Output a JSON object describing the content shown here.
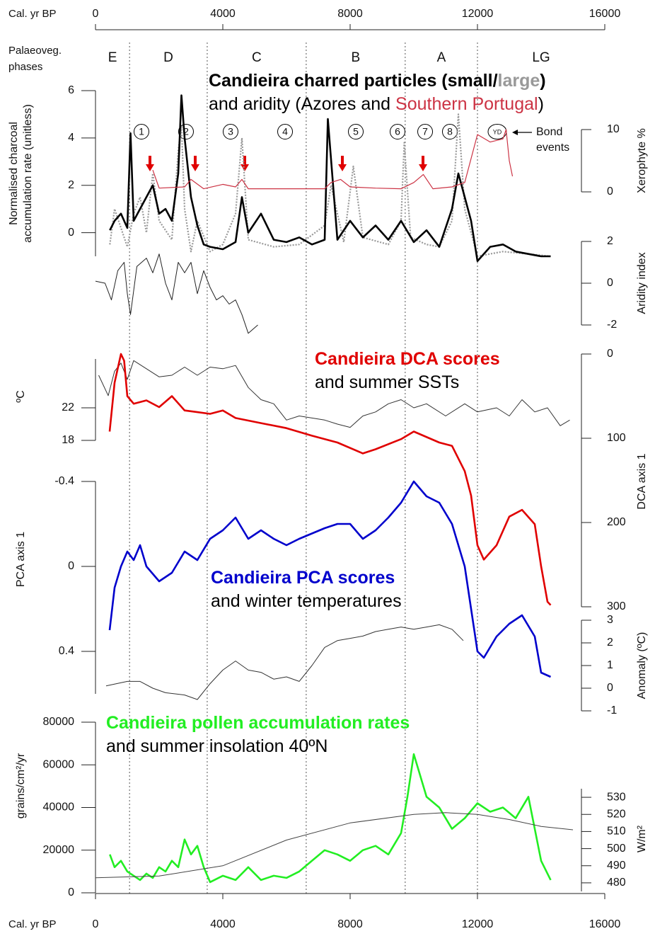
{
  "chart_data": [
    {
      "type": "line",
      "title": [
        {
          "text": "Candieira charred particles (",
          "color": "#000000"
        },
        {
          "text": "small",
          "color": "#000000"
        },
        {
          "text": "/",
          "color": "#000000"
        },
        {
          "text": "large",
          "color": "#999999"
        },
        {
          "text": ")",
          "color": "#000000"
        }
      ],
      "subtitle": [
        {
          "text": "and aridity (Azores and ",
          "color": "#000000"
        },
        {
          "text": "Southern Portugal",
          "color": "#cc3344"
        },
        {
          "text": ")",
          "color": "#000000"
        }
      ],
      "xlabel": "Cal. yr BP",
      "xlim": [
        0,
        16000
      ],
      "xticks": [
        0,
        4000,
        8000,
        12000,
        16000
      ],
      "phases_label": [
        "Palaeoveg.",
        "phases"
      ],
      "phases": [
        "E",
        "D",
        "C",
        "B",
        "A",
        "LG"
      ],
      "phase_boundaries": [
        1070,
        3510,
        6620,
        9730,
        12000
      ],
      "bond_events": {
        "labels": [
          "1",
          "2",
          "3",
          "4",
          "5",
          "6",
          "7",
          "8",
          "YD"
        ],
        "x": [
          1444,
          2844,
          4244,
          5956,
          8178,
          9489,
          10356,
          11133,
          12622
        ]
      },
      "bond_label": [
        "Bond",
        "events"
      ],
      "arrows_x": [
        1711,
        3133,
        4689,
        7756,
        10289
      ],
      "ylabel": [
        "Normalised charcoal",
        "accumulation rate (unitless)"
      ],
      "ylim": [
        -1,
        6
      ],
      "yticks": [
        0,
        2,
        4,
        6
      ],
      "y2label": "Xerophyte %",
      "y2lim": [
        0,
        10
      ],
      "y2ticks": [
        0,
        10
      ],
      "y3label": "Aridity index",
      "y3lim": [
        -2,
        2
      ],
      "y3ticks": [
        -2,
        0,
        2
      ],
      "series": [
        {
          "color": "#999999",
          "style": "dotted",
          "width": 2.2,
          "x": [
            450,
            600,
            800,
            1000,
            1200,
            1400,
            1600,
            1800,
            2000,
            2400,
            2600,
            2700,
            2800,
            3000,
            3200,
            3600,
            4000,
            4400,
            4600,
            4800,
            5600,
            6400,
            7200,
            7400,
            7800,
            8100,
            8400,
            9200,
            9600,
            9700,
            9900,
            10400,
            10800,
            11200,
            11400,
            11600,
            12000,
            12800,
            13600,
            14300
          ],
          "values": [
            -0.5,
            1.0,
            0.2,
            -0.6,
            0.8,
            1.5,
            0.0,
            2.5,
            0.5,
            -0.3,
            3.5,
            4.5,
            1.0,
            -0.8,
            0.5,
            -0.8,
            -0.5,
            0.8,
            4.0,
            -0.3,
            -0.6,
            -0.5,
            0.3,
            2.0,
            -0.4,
            2.8,
            -0.2,
            -0.5,
            0.5,
            3.8,
            -0.2,
            -0.5,
            -0.6,
            0.5,
            5.0,
            1.0,
            -1.0,
            -0.8,
            -0.9,
            -1.0
          ]
        },
        {
          "color": "#000000",
          "style": "solid",
          "width": 2.6,
          "x": [
            450,
            600,
            800,
            1000,
            1100,
            1200,
            1400,
            1600,
            1800,
            2000,
            2200,
            2400,
            2600,
            2700,
            2800,
            3000,
            3200,
            3400,
            3600,
            4000,
            4400,
            4600,
            4800,
            5200,
            5600,
            6000,
            6400,
            6800,
            7200,
            7300,
            7600,
            8000,
            8400,
            8800,
            9200,
            9600,
            10000,
            10400,
            10800,
            11200,
            11400,
            11600,
            11800,
            12000,
            12400,
            12800,
            13200,
            13600,
            14000,
            14300
          ],
          "values": [
            0.1,
            0.5,
            0.8,
            0.2,
            4.2,
            0.5,
            1.0,
            1.5,
            2.0,
            0.8,
            1.0,
            0.5,
            2.5,
            5.8,
            4.0,
            1.5,
            0.3,
            -0.5,
            -0.6,
            -0.7,
            -0.4,
            1.5,
            0.0,
            0.8,
            -0.3,
            -0.4,
            -0.2,
            -0.5,
            -0.3,
            4.8,
            -0.3,
            0.5,
            -0.2,
            0.3,
            -0.3,
            0.5,
            -0.4,
            0.1,
            -0.6,
            1.0,
            2.5,
            1.5,
            0.5,
            -1.2,
            -0.6,
            -0.5,
            -0.8,
            -0.9,
            -1.0,
            -1.0
          ]
        },
        {
          "color": "#cc3344",
          "style": "solid",
          "width": 1.2,
          "axis": "y2",
          "x": [
            1800,
            2000,
            2800,
            3000,
            3400,
            4000,
            4400,
            4600,
            4800,
            6000,
            7200,
            7400,
            7700,
            8000,
            8800,
            9600,
            10000,
            10300,
            10600,
            11200,
            11600,
            12000,
            12400,
            12800,
            12900,
            13000,
            13100
          ],
          "values": [
            3.5,
            0.6,
            0.8,
            2.0,
            0.5,
            1.2,
            0.8,
            2.0,
            0.5,
            0.5,
            0.5,
            1.5,
            2.0,
            0.8,
            0.6,
            0.5,
            1.5,
            2.8,
            0.5,
            0.8,
            1.5,
            9.2,
            8.0,
            8.5,
            10.0,
            5.0,
            2.5
          ]
        },
        {
          "color": "#222222",
          "style": "solid",
          "width": 1,
          "axis": "y3",
          "x": [
            0,
            300,
            500,
            700,
            900,
            1000,
            1100,
            1300,
            1600,
            1800,
            2000,
            2200,
            2400,
            2600,
            2800,
            3000,
            3200,
            3400,
            3600,
            3800,
            4000,
            4200,
            4400,
            4600,
            4800,
            5100
          ],
          "values": [
            0.1,
            0.0,
            -0.8,
            0.6,
            1.0,
            -0.5,
            -1.5,
            0.8,
            1.2,
            0.5,
            1.4,
            0.0,
            -0.8,
            1.0,
            0.5,
            1.0,
            -0.5,
            0.6,
            -0.2,
            -0.8,
            -0.6,
            -1.0,
            -0.8,
            -1.5,
            -2.4,
            -2.0
          ]
        }
      ]
    },
    {
      "type": "line",
      "title": [
        {
          "text": "Candieira DCA scores",
          "color": "#e00000"
        }
      ],
      "subtitle": [
        {
          "text": "and summer SSTs",
          "color": "#000000"
        }
      ],
      "xlim": [
        0,
        16000
      ],
      "ylabel": "ºC",
      "ylim": [
        18,
        28
      ],
      "yticks": [
        18,
        22
      ],
      "y2label": "DCA axis 1",
      "y2lim": [
        0,
        300
      ],
      "y2ticks": [
        0,
        100,
        200,
        300
      ],
      "y2_inverted": true,
      "series": [
        {
          "color": "#333333",
          "style": "solid",
          "width": 1,
          "x": [
            100,
            400,
            600,
            800,
            1000,
            1200,
            1600,
            2000,
            2400,
            2800,
            3200,
            3600,
            4000,
            4400,
            4800,
            5200,
            5600,
            6000,
            6400,
            7200,
            7600,
            8000,
            8400,
            8800,
            9200,
            9600,
            10000,
            10400,
            11000,
            11600,
            12000,
            12600,
            13000,
            13400,
            13800,
            14200,
            14600,
            14900
          ],
          "values": [
            26.0,
            23.5,
            26.5,
            27.5,
            25.5,
            27.8,
            26.8,
            25.8,
            26.0,
            27.0,
            26.0,
            27.0,
            26.8,
            27.2,
            24.5,
            23.0,
            22.5,
            20.5,
            21.0,
            20.5,
            20.0,
            19.6,
            21.0,
            21.5,
            22.5,
            23.0,
            22.0,
            22.5,
            21.0,
            22.5,
            21.5,
            22.0,
            21.0,
            23.0,
            21.5,
            22.0,
            19.8,
            20.5
          ]
        },
        {
          "color": "#e00000",
          "style": "solid",
          "width": 2.6,
          "axis": "y2",
          "x": [
            444,
            600,
            800,
            900,
            1000,
            1200,
            1600,
            2000,
            2400,
            2800,
            3200,
            3600,
            4000,
            4400,
            5200,
            6000,
            6800,
            7600,
            8400,
            8800,
            9600,
            10000,
            10800,
            11200,
            11600,
            11800,
            12000,
            12200,
            12600,
            13000,
            13400,
            13800,
            14000,
            14200,
            14300
          ],
          "values": [
            92,
            34,
            0,
            8,
            50,
            59,
            55,
            63,
            50,
            67,
            69,
            71,
            67,
            76,
            82,
            88,
            97,
            105,
            118,
            113,
            101,
            92,
            105,
            109,
            139,
            168,
            227,
            244,
            227,
            193,
            185,
            202,
            252,
            294,
            298
          ]
        }
      ]
    },
    {
      "type": "line",
      "title": [
        {
          "text": "Candieira PCA scores",
          "color": "#0000cc"
        }
      ],
      "subtitle": [
        {
          "text": "and winter temperatures",
          "color": "#000000"
        }
      ],
      "xlim": [
        0,
        16000
      ],
      "ylabel": "PCA axis 1",
      "ylim": [
        -0.4,
        0.6
      ],
      "yticks": [
        -0.4,
        0,
        0.4
      ],
      "y_inverted": true,
      "y2label": "Anomaly (ºC)",
      "y2lim": [
        -1,
        3
      ],
      "y2ticks": [
        -1,
        0,
        1,
        2,
        3
      ],
      "series": [
        {
          "color": "#0000cc",
          "style": "solid",
          "width": 2.6,
          "x": [
            444,
            600,
            800,
            1000,
            1200,
            1400,
            1600,
            2000,
            2400,
            2800,
            3200,
            3600,
            4000,
            4400,
            4800,
            5200,
            5600,
            6000,
            6400,
            7200,
            7600,
            8000,
            8400,
            8800,
            9200,
            9600,
            10000,
            10400,
            10800,
            11200,
            11600,
            11800,
            12000,
            12200,
            12600,
            13000,
            13400,
            13800,
            14000,
            14300
          ],
          "values": [
            0.3,
            0.1,
            0.0,
            -0.07,
            -0.03,
            -0.1,
            0.0,
            0.07,
            0.03,
            -0.07,
            -0.03,
            -0.13,
            -0.17,
            -0.23,
            -0.13,
            -0.17,
            -0.13,
            -0.1,
            -0.13,
            -0.18,
            -0.2,
            -0.2,
            -0.13,
            -0.17,
            -0.23,
            -0.3,
            -0.4,
            -0.33,
            -0.3,
            -0.2,
            0.0,
            0.2,
            0.4,
            0.43,
            0.33,
            0.27,
            0.23,
            0.33,
            0.5,
            0.52
          ]
        },
        {
          "color": "#333333",
          "style": "solid",
          "width": 1,
          "axis": "y2",
          "x": [
            333,
            1000,
            1400,
            1800,
            2200,
            2800,
            3200,
            3600,
            4000,
            4400,
            4800,
            5200,
            5600,
            6000,
            6400,
            6800,
            7200,
            7600,
            8000,
            8400,
            8800,
            9200,
            9600,
            10000,
            10400,
            10800,
            11200,
            11556
          ],
          "values": [
            0.1,
            0.3,
            0.3,
            0.0,
            -0.2,
            -0.3,
            -0.5,
            0.2,
            0.8,
            1.2,
            0.8,
            0.7,
            0.4,
            0.5,
            0.3,
            1.0,
            1.8,
            2.1,
            2.2,
            2.3,
            2.5,
            2.6,
            2.7,
            2.6,
            2.7,
            2.8,
            2.6,
            2.1
          ]
        }
      ]
    },
    {
      "type": "line",
      "title": [
        {
          "text": "Candieira pollen accumulation rates",
          "color": "#22ee22"
        }
      ],
      "subtitle": [
        {
          "text": "and summer insolation 40ºN",
          "color": "#000000"
        }
      ],
      "xlabel": "Cal. yr BP",
      "xlim": [
        0,
        16000
      ],
      "xticks": [
        0,
        4000,
        8000,
        12000,
        16000
      ],
      "ylabel": "grains/cm²/yr",
      "ylim": [
        0,
        80000
      ],
      "yticks": [
        0,
        20000,
        40000,
        60000,
        80000
      ],
      "y2label": "W/m²",
      "y2lim": [
        475,
        535
      ],
      "y2ticks": [
        480,
        490,
        500,
        510,
        520,
        530
      ],
      "series": [
        {
          "color": "#22ee22",
          "style": "solid",
          "width": 2.6,
          "x": [
            450,
            600,
            800,
            1000,
            1200,
            1400,
            1600,
            1800,
            2000,
            2200,
            2400,
            2600,
            2800,
            3000,
            3200,
            3400,
            3600,
            4000,
            4400,
            4800,
            5200,
            5600,
            6000,
            6400,
            6800,
            7200,
            7600,
            8000,
            8400,
            8800,
            9200,
            9600,
            9800,
            10000,
            10200,
            10400,
            10800,
            11200,
            11600,
            12000,
            12400,
            12800,
            13200,
            13600,
            13800,
            14000,
            14300
          ],
          "values": [
            18000,
            12000,
            15000,
            10000,
            8000,
            6000,
            9000,
            7000,
            12000,
            10000,
            15000,
            12000,
            25000,
            18000,
            22000,
            12000,
            5000,
            8000,
            6000,
            12000,
            6000,
            8000,
            7000,
            10000,
            15000,
            20000,
            18000,
            15000,
            20000,
            22000,
            18000,
            28000,
            45000,
            65000,
            55000,
            45000,
            40000,
            30000,
            35000,
            42000,
            38000,
            40000,
            35000,
            45000,
            30000,
            15000,
            6000
          ]
        },
        {
          "color": "#444444",
          "style": "solid",
          "width": 1,
          "axis": "y2",
          "x": [
            0,
            2000,
            4000,
            6000,
            8000,
            10000,
            11000,
            12000,
            13000,
            14000,
            15000
          ],
          "values": [
            483,
            484,
            490,
            505,
            515,
            520,
            521,
            520,
            517,
            513,
            511
          ]
        }
      ]
    }
  ]
}
